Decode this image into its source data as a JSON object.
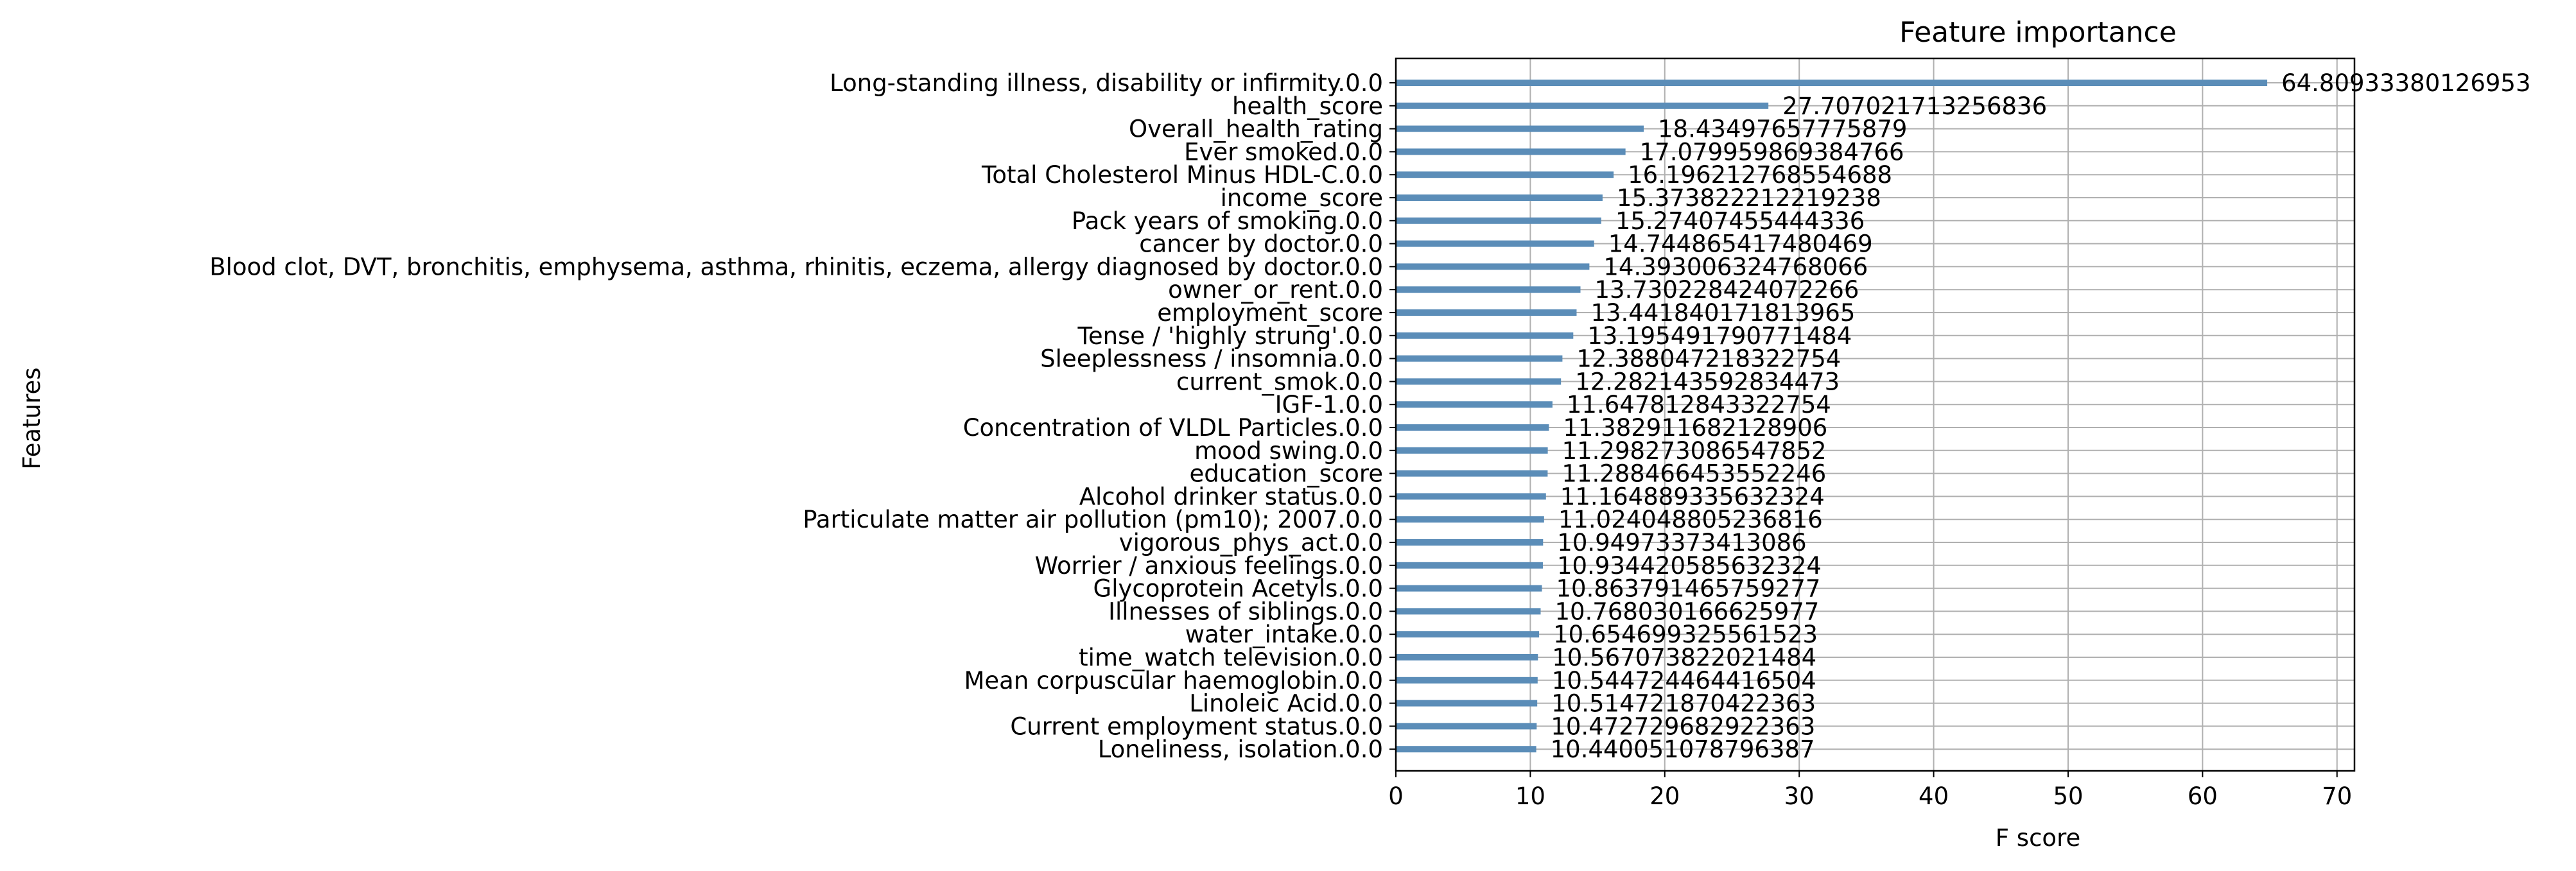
{
  "chart_data": {
    "type": "bar",
    "orientation": "horizontal",
    "title": "Feature importance",
    "xlabel": "F score",
    "ylabel": "Features",
    "xlim": [
      0,
      71.3
    ],
    "xticks": [
      0,
      10,
      20,
      30,
      40,
      50,
      60,
      70
    ],
    "grid": true,
    "legend": "none",
    "bar_color": "#5b8db8",
    "categories": [
      "Long-standing illness, disability or infirmity.0.0",
      "health_score",
      "Overall_health_rating",
      "Ever smoked.0.0",
      "Total Cholesterol Minus HDL-C.0.0",
      "income_score",
      "Pack years of smoking.0.0",
      "cancer by doctor.0.0",
      "Blood clot, DVT, bronchitis, emphysema, asthma, rhinitis, eczema, allergy diagnosed by doctor.0.0",
      "owner_or_rent.0.0",
      "employment_score",
      "Tense / 'highly strung'.0.0",
      "Sleeplessness / insomnia.0.0",
      "current_smok.0.0",
      "IGF-1.0.0",
      "Concentration of VLDL Particles.0.0",
      "mood swing.0.0",
      "education_score",
      "Alcohol drinker status.0.0",
      "Particulate matter air pollution (pm10); 2007.0.0",
      "vigorous_phys_act.0.0",
      "Worrier / anxious feelings.0.0",
      "Glycoprotein Acetyls.0.0",
      "Illnesses of siblings.0.0",
      "water_intake.0.0",
      "time_watch television.0.0",
      "Mean corpuscular haemoglobin.0.0",
      "Linoleic Acid.0.0",
      "Current employment status.0.0",
      "Loneliness, isolation.0.0"
    ],
    "values": [
      64.80933380126953,
      27.707021713256836,
      18.43497657775879,
      17.079959869384766,
      16.196212768554688,
      15.373822212219238,
      15.27407455444336,
      14.744865417480469,
      14.393006324768066,
      13.730228424072266,
      13.441840171813965,
      13.195491790771484,
      12.388047218322754,
      12.282143592834473,
      11.647812843322754,
      11.382911682128906,
      11.298273086547852,
      11.288466453552246,
      11.164889335632324,
      11.024048805236816,
      10.94973373413086,
      10.934420585632324,
      10.863791465759277,
      10.768030166625977,
      10.654699325561523,
      10.567073822021484,
      10.544724464416504,
      10.514721870422363,
      10.472729682922363,
      10.440051078796387
    ],
    "value_labels": [
      "64.80933380126953",
      "27.707021713256836",
      "18.43497657775879",
      "17.079959869384766",
      "16.196212768554688",
      "15.373822212219238",
      "15.27407455444336",
      "14.744865417480469",
      "14.393006324768066",
      "13.730228424072266",
      "13.441840171813965",
      "13.195491790771484",
      "12.388047218322754",
      "12.282143592834473",
      "11.647812843322754",
      "11.382911682128906",
      "11.298273086547852",
      "11.288466453552246",
      "11.164889335632324",
      "11.024048805236816",
      "10.94973373413086",
      "10.934420585632324",
      "10.863791465759277",
      "10.768030166625977",
      "10.654699325561523",
      "10.567073822021484",
      "10.544724464416504",
      "10.514721870422363",
      "10.472729682922363",
      "10.440051078796387"
    ]
  }
}
